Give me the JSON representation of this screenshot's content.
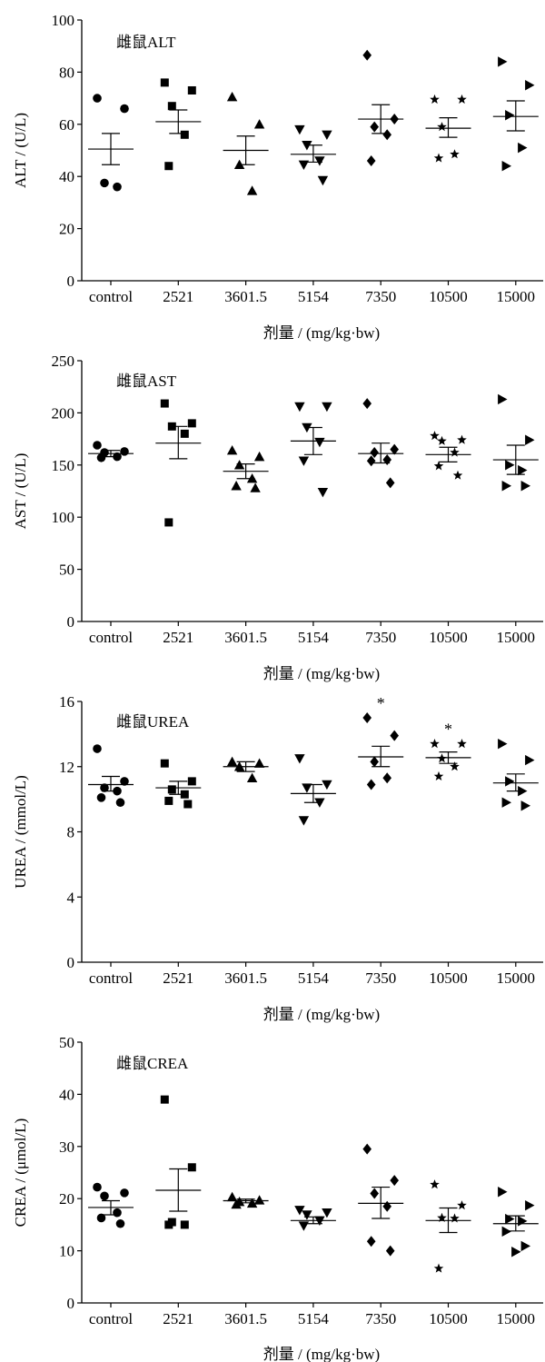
{
  "chart_data": [
    {
      "type": "scatter",
      "title": "雌鼠ALT",
      "ylabel": "ALT / (U/L)",
      "xlabel": "剂量 / (mg/kg·bw)",
      "categories": [
        "control",
        "2521",
        "3601.5",
        "5154",
        "7350",
        "10500",
        "15000"
      ],
      "ylim": [
        0,
        100
      ],
      "yticks": [
        0,
        20,
        40,
        60,
        80,
        100
      ],
      "markers": [
        "circle",
        "square",
        "triangle-up",
        "triangle-down",
        "diamond",
        "star",
        "triangle-right"
      ],
      "points": [
        [
          70,
          66,
          37.5,
          36
        ],
        [
          76,
          73,
          67,
          56,
          44
        ],
        [
          70.5,
          60,
          44.5,
          34.5
        ],
        [
          58,
          56,
          52,
          46,
          44.5,
          38.5
        ],
        [
          86.5,
          62,
          59,
          56,
          46
        ],
        [
          69.5,
          69.5,
          59,
          48.5,
          47
        ],
        [
          84,
          75,
          63.5,
          51,
          44
        ]
      ],
      "means": [
        50.5,
        61,
        50,
        48.5,
        62,
        58.5,
        63
      ],
      "errors": [
        [
          44.5,
          56.5
        ],
        [
          56.5,
          65.5
        ],
        [
          44.5,
          55.5
        ],
        [
          45.5,
          52
        ],
        [
          56.5,
          67.5
        ],
        [
          55,
          62.5
        ],
        [
          57.5,
          69
        ]
      ],
      "significance": [
        "",
        "",
        "",
        "",
        "",
        "",
        ""
      ]
    },
    {
      "type": "scatter",
      "title": "雌鼠AST",
      "ylabel": "AST / (U/L)",
      "xlabel": "剂量 / (mg/kg·bw)",
      "categories": [
        "control",
        "2521",
        "3601.5",
        "5154",
        "7350",
        "10500",
        "15000"
      ],
      "ylim": [
        0,
        250
      ],
      "yticks": [
        0,
        50,
        100,
        150,
        200,
        250
      ],
      "markers": [
        "circle",
        "square",
        "triangle-up",
        "triangle-down",
        "diamond",
        "star",
        "triangle-right"
      ],
      "points": [
        [
          169,
          163,
          162,
          158,
          157
        ],
        [
          209,
          190,
          187,
          180,
          95
        ],
        [
          164,
          158,
          150,
          137,
          130,
          128
        ],
        [
          206,
          206,
          186,
          172,
          154,
          124
        ],
        [
          209,
          165,
          162,
          155,
          154,
          133
        ],
        [
          178,
          174,
          173,
          162,
          149,
          140
        ],
        [
          213,
          174,
          150,
          145,
          130,
          130
        ]
      ],
      "means": [
        161,
        171,
        144,
        173,
        161,
        160,
        155
      ],
      "errors": [
        [
          158,
          164
        ],
        [
          156,
          187
        ],
        [
          137,
          151
        ],
        [
          160,
          186
        ],
        [
          152,
          171
        ],
        [
          153,
          167
        ],
        [
          141,
          169
        ]
      ],
      "significance": [
        "",
        "",
        "",
        "",
        "",
        "",
        ""
      ]
    },
    {
      "type": "scatter",
      "title": "雌鼠UREA",
      "ylabel": "UREA / (mmol/L)",
      "xlabel": "剂量 / (mg/kg·bw)",
      "categories": [
        "control",
        "2521",
        "3601.5",
        "5154",
        "7350",
        "10500",
        "15000"
      ],
      "ylim": [
        0,
        16
      ],
      "yticks": [
        0,
        4,
        8,
        12,
        16
      ],
      "markers": [
        "circle",
        "square",
        "triangle-up",
        "triangle-down",
        "diamond",
        "star",
        "triangle-right"
      ],
      "points": [
        [
          13.1,
          11.1,
          10.7,
          10.5,
          10.1,
          9.8
        ],
        [
          12.2,
          11.1,
          10.6,
          10.3,
          9.9,
          9.7
        ],
        [
          12.3,
          12.2,
          12.0,
          11.3
        ],
        [
          12.5,
          10.9,
          10.7,
          9.8,
          8.7
        ],
        [
          15.0,
          13.9,
          12.3,
          11.3,
          10.9
        ],
        [
          13.4,
          13.4,
          12.5,
          12.0,
          11.4
        ],
        [
          13.4,
          12.4,
          11.1,
          10.5,
          9.8,
          9.6
        ]
      ],
      "means": [
        10.9,
        10.7,
        12.0,
        10.35,
        12.6,
        12.55,
        11.0
      ],
      "errors": [
        [
          10.5,
          11.4
        ],
        [
          10.3,
          11.1
        ],
        [
          11.7,
          12.3
        ],
        [
          9.8,
          10.9
        ],
        [
          12.0,
          13.25
        ],
        [
          12.2,
          12.9
        ],
        [
          10.5,
          11.55
        ]
      ],
      "significance": [
        "",
        "",
        "",
        "",
        "*",
        "*",
        ""
      ]
    },
    {
      "type": "scatter",
      "title": "雌鼠CREA",
      "ylabel": "CREA / (μmol/L)",
      "xlabel": "剂量 / (mg/kg·bw)",
      "categories": [
        "control",
        "2521",
        "3601.5",
        "5154",
        "7350",
        "10500",
        "15000"
      ],
      "ylim": [
        0,
        50
      ],
      "yticks": [
        0,
        10,
        20,
        30,
        40,
        50
      ],
      "markers": [
        "circle",
        "square",
        "triangle-up",
        "triangle-down",
        "diamond",
        "star",
        "triangle-right"
      ],
      "points": [
        [
          22.2,
          21.1,
          20.5,
          17.3,
          16.3,
          15.2
        ],
        [
          39,
          26,
          15.5,
          15,
          15
        ],
        [
          20.3,
          19.7,
          19.4,
          19.1,
          18.9
        ],
        [
          17.8,
          17.3,
          16.9,
          15.8,
          14.8
        ],
        [
          29.5,
          23.5,
          21,
          18.5,
          11.8,
          10
        ],
        [
          22.7,
          18.7,
          16.3,
          16.2,
          6.6
        ],
        [
          21.3,
          18.7,
          16.1,
          15.7,
          13.7,
          10.9,
          9.8
        ]
      ],
      "means": [
        18.3,
        21.6,
        19.6,
        15.8,
        19.1,
        15.8,
        15.2
      ],
      "errors": [
        [
          16.9,
          19.6
        ],
        [
          17.6,
          25.7
        ],
        [
          19.2,
          19.9
        ],
        [
          15.2,
          16.5
        ],
        [
          16.2,
          22.2
        ],
        [
          13.5,
          18.2
        ],
        [
          13.8,
          16.7
        ]
      ],
      "significance": [
        "",
        "",
        "",
        "",
        "",
        "",
        ""
      ]
    }
  ]
}
